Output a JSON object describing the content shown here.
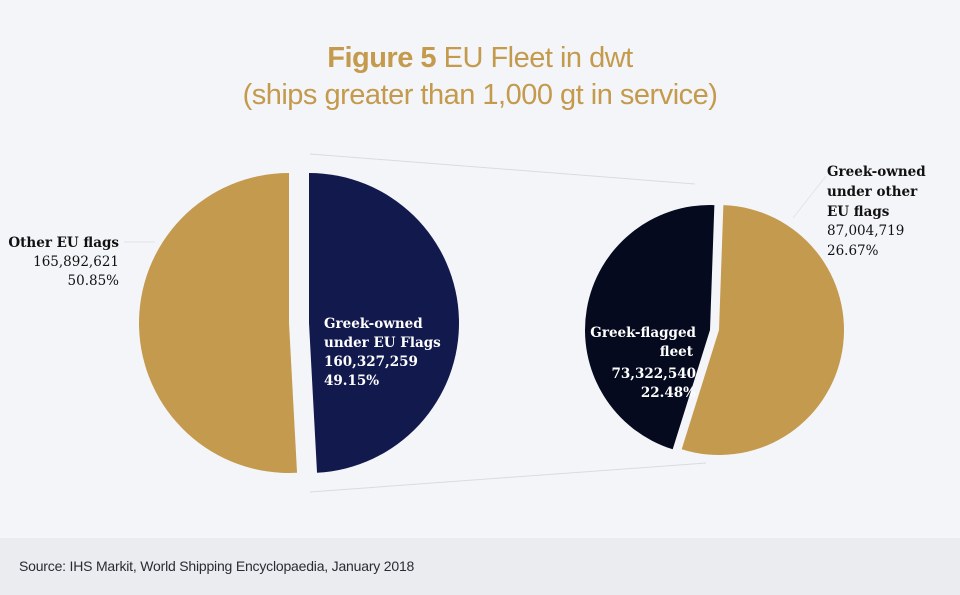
{
  "title": {
    "figure_label": "Figure 5",
    "main": "EU Fleet in dwt",
    "subtitle": "(ships greater than 1,000 gt in service)"
  },
  "source": "Source: IHS Markit, World Shipping Encyclopaedia, January 2018",
  "colors": {
    "gold": "#c49a4f",
    "navy": "#12194d",
    "dark_navy": "#050a1f",
    "title_gold": "#c49a4c",
    "connector": "#d6d8de"
  },
  "chart_data": [
    {
      "type": "pie",
      "title": "EU Fleet in dwt",
      "unit": "dwt",
      "slices": [
        {
          "label": "Other EU flags",
          "value": 165892621,
          "value_text": "165,892,621",
          "percent": 50.85,
          "percent_text": "50.85%",
          "color": "#c49a4f"
        },
        {
          "label": "Greek-owned under EU Flags",
          "value": 160327259,
          "value_text": "160,327,259",
          "percent": 49.15,
          "percent_text": "49.15%",
          "color": "#12194d"
        }
      ]
    },
    {
      "type": "pie",
      "title": "Breakdown of Greek-owned under EU Flags",
      "unit": "dwt",
      "slices": [
        {
          "label": "Greek-flagged fleet",
          "label_lines": [
            "Greek-flagged",
            "fleet"
          ],
          "value": 73322540,
          "value_text": "73,322,540",
          "percent": 22.48,
          "percent_text": "22.48%",
          "color": "#050a1f"
        },
        {
          "label": "Greek-owned under other EU flags",
          "label_lines": [
            "Greek-owned",
            "under other",
            "EU flags"
          ],
          "value": 87004719,
          "value_text": "87,004,719",
          "percent": 26.67,
          "percent_text": "26.67%",
          "color": "#c49a4f"
        }
      ]
    }
  ],
  "labels": {
    "left_pie": {
      "other_eu": {
        "name": "Other EU flags",
        "value": "165,892,621",
        "pct": "50.85%"
      },
      "greek_owned": {
        "line1": "Greek-owned",
        "line2": "under EU Flags",
        "value": "160,327,259",
        "pct": "49.15%"
      }
    },
    "right_pie": {
      "greek_flagged": {
        "line1": "Greek-flagged",
        "line2": "fleet",
        "value": "73,322,540",
        "pct": "22.48%"
      },
      "other_flags": {
        "line1": "Greek-owned",
        "line2": "under other",
        "line3": "EU flags",
        "value": "87,004,719",
        "pct": "26.67%"
      }
    }
  }
}
